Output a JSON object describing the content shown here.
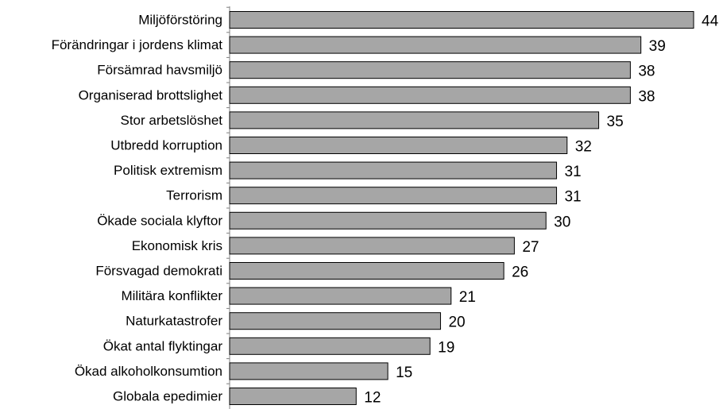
{
  "chart_data": {
    "type": "bar",
    "orientation": "horizontal",
    "categories": [
      "Miljöförstöring",
      "Förändringar i jordens klimat",
      "Försämrad havsmiljö",
      "Organiserad brottslighet",
      "Stor arbetslöshet",
      "Utbredd korruption",
      "Politisk extremism",
      "Terrorism",
      "Ökade sociala klyftor",
      "Ekonomisk kris",
      "Försvagad demokrati",
      "Militära konflikter",
      "Naturkatastrofer",
      "Ökat antal flyktingar",
      "Ökad alkoholkonsumtion",
      "Globala epedimier"
    ],
    "values": [
      44,
      39,
      38,
      38,
      35,
      32,
      31,
      31,
      30,
      27,
      26,
      21,
      20,
      19,
      15,
      12
    ],
    "title": "",
    "xlabel": "",
    "ylabel": "",
    "xlim": [
      0,
      44
    ],
    "grid": false,
    "legend": "none",
    "data_labels": true,
    "colors": {
      "bar_fill": "#a6a6a6",
      "bar_stroke": "#000000",
      "axis": "#808080"
    }
  }
}
